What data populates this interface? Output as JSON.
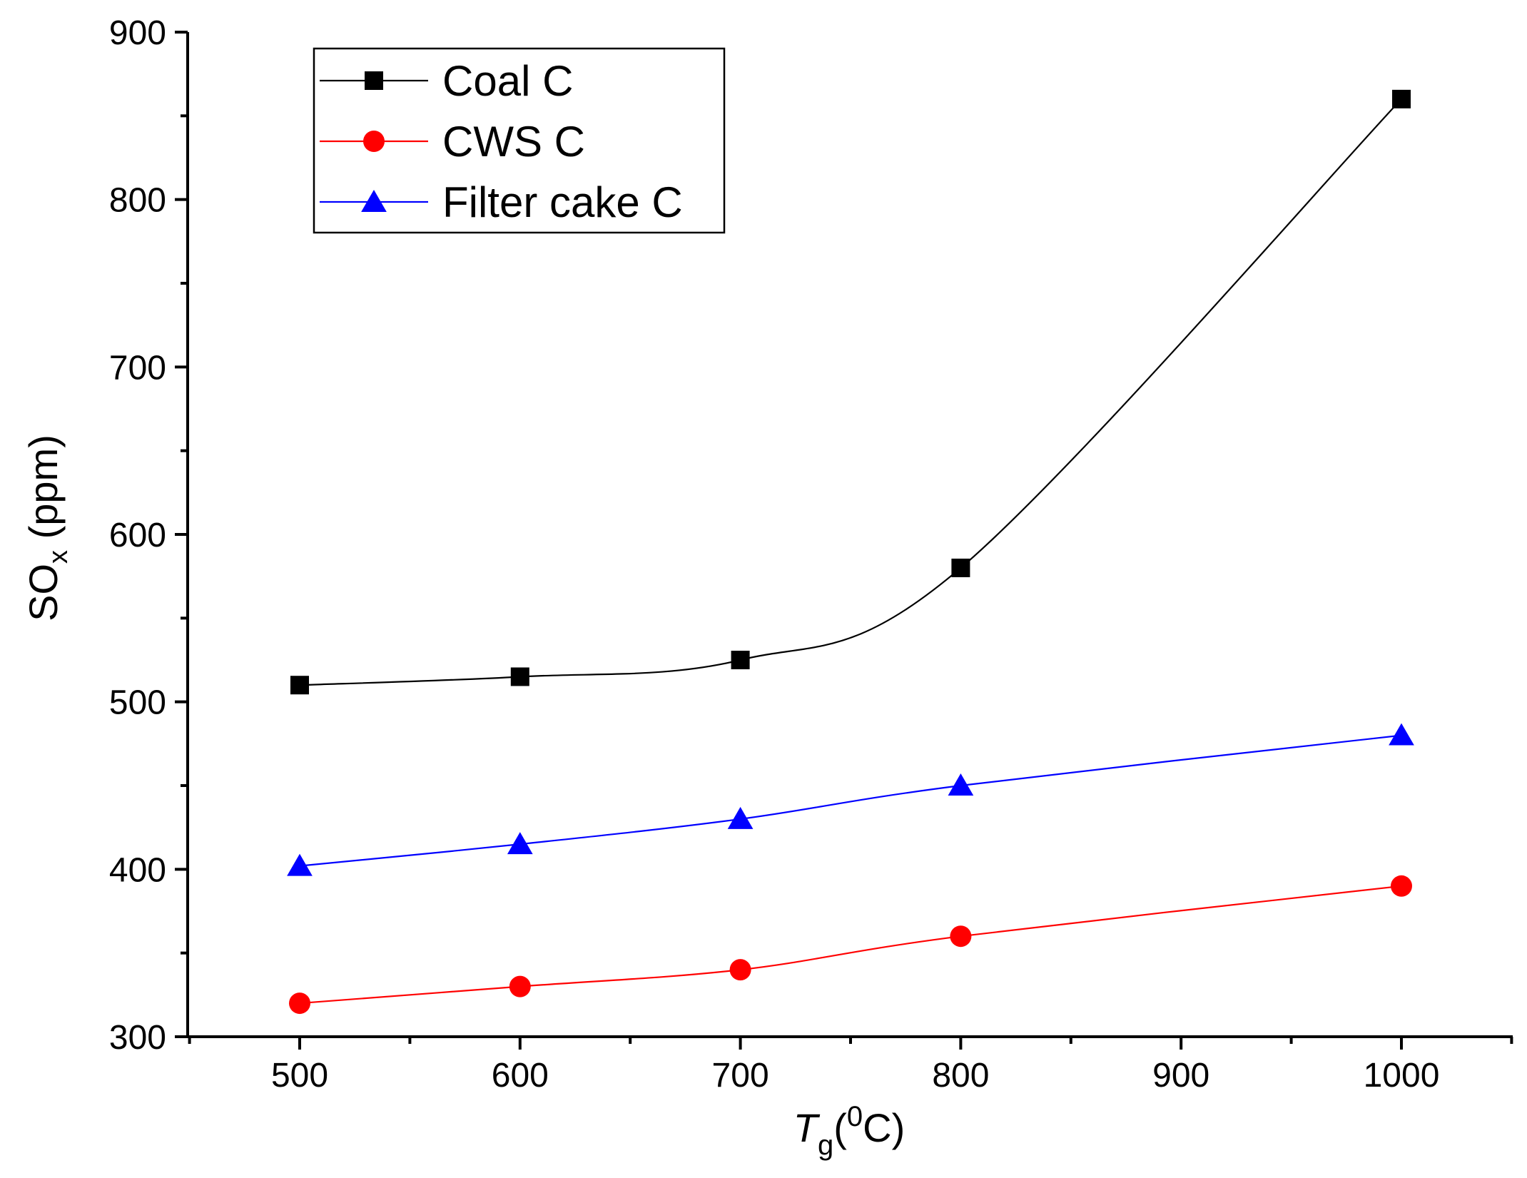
{
  "chart_data": {
    "type": "line",
    "x": [
      500,
      600,
      700,
      800,
      1000
    ],
    "xlim": [
      450,
      1050
    ],
    "ylim": [
      300,
      900
    ],
    "x_ticks": [
      500,
      600,
      700,
      800,
      900,
      1000
    ],
    "y_ticks": [
      300,
      400,
      500,
      600,
      700,
      800,
      900
    ],
    "xlabel": {
      "main": "T",
      "sub": "g",
      "paren_open": "(",
      "sup": "0",
      "unit": "C)"
    },
    "ylabel": {
      "main": "SO",
      "sub": "x",
      "unit": " (ppm)"
    },
    "legend_position": "top-left",
    "smooth": true,
    "series": [
      {
        "name": "Coal C",
        "color": "#000000",
        "marker": "square",
        "values": [
          510,
          515,
          525,
          580,
          860
        ]
      },
      {
        "name": "CWS C",
        "color": "#ff0000",
        "marker": "circle",
        "values": [
          320,
          330,
          340,
          360,
          390
        ]
      },
      {
        "name": "Filter cake C",
        "color": "#0000ff",
        "marker": "triangle",
        "values": [
          402,
          415,
          430,
          450,
          480
        ]
      }
    ]
  }
}
